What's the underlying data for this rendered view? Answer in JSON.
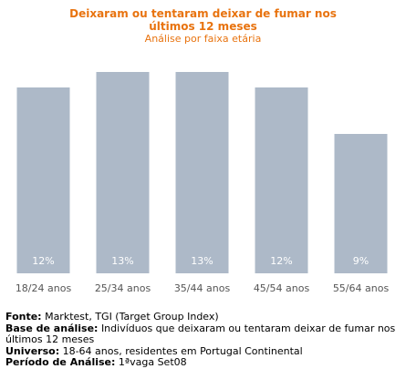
{
  "chart_data": {
    "type": "bar",
    "title": "Deixaram ou tentaram deixar de fumar nos últimos 12 meses",
    "subtitle": "Análise por faixa etária",
    "categories": [
      "18/24 anos",
      "25/34 anos",
      "35/44 anos",
      "45/54 anos",
      "55/64 anos"
    ],
    "values": [
      12,
      13,
      13,
      12,
      9
    ],
    "value_labels": [
      "12%",
      "13%",
      "13%",
      "12%",
      "9%"
    ],
    "unit": "%",
    "ylim": [
      0,
      15
    ],
    "grid": false,
    "bar_color": "#adb9c8",
    "label_color": "#ffffff"
  },
  "footer": {
    "fonte_label": "Fonte:",
    "fonte_value": "Marktest, TGI (Target Group Index)",
    "base_label": "Base de análise:",
    "base_value": "Indivíduos que deixaram ou tentaram deixar de fumar nos últimos 12 meses",
    "universo_label": "Universo:",
    "universo_value": "18-64 anos, residentes em Portugal Continental",
    "periodo_label": "Período de Análise:",
    "periodo_value": "1ªvaga Set08"
  }
}
